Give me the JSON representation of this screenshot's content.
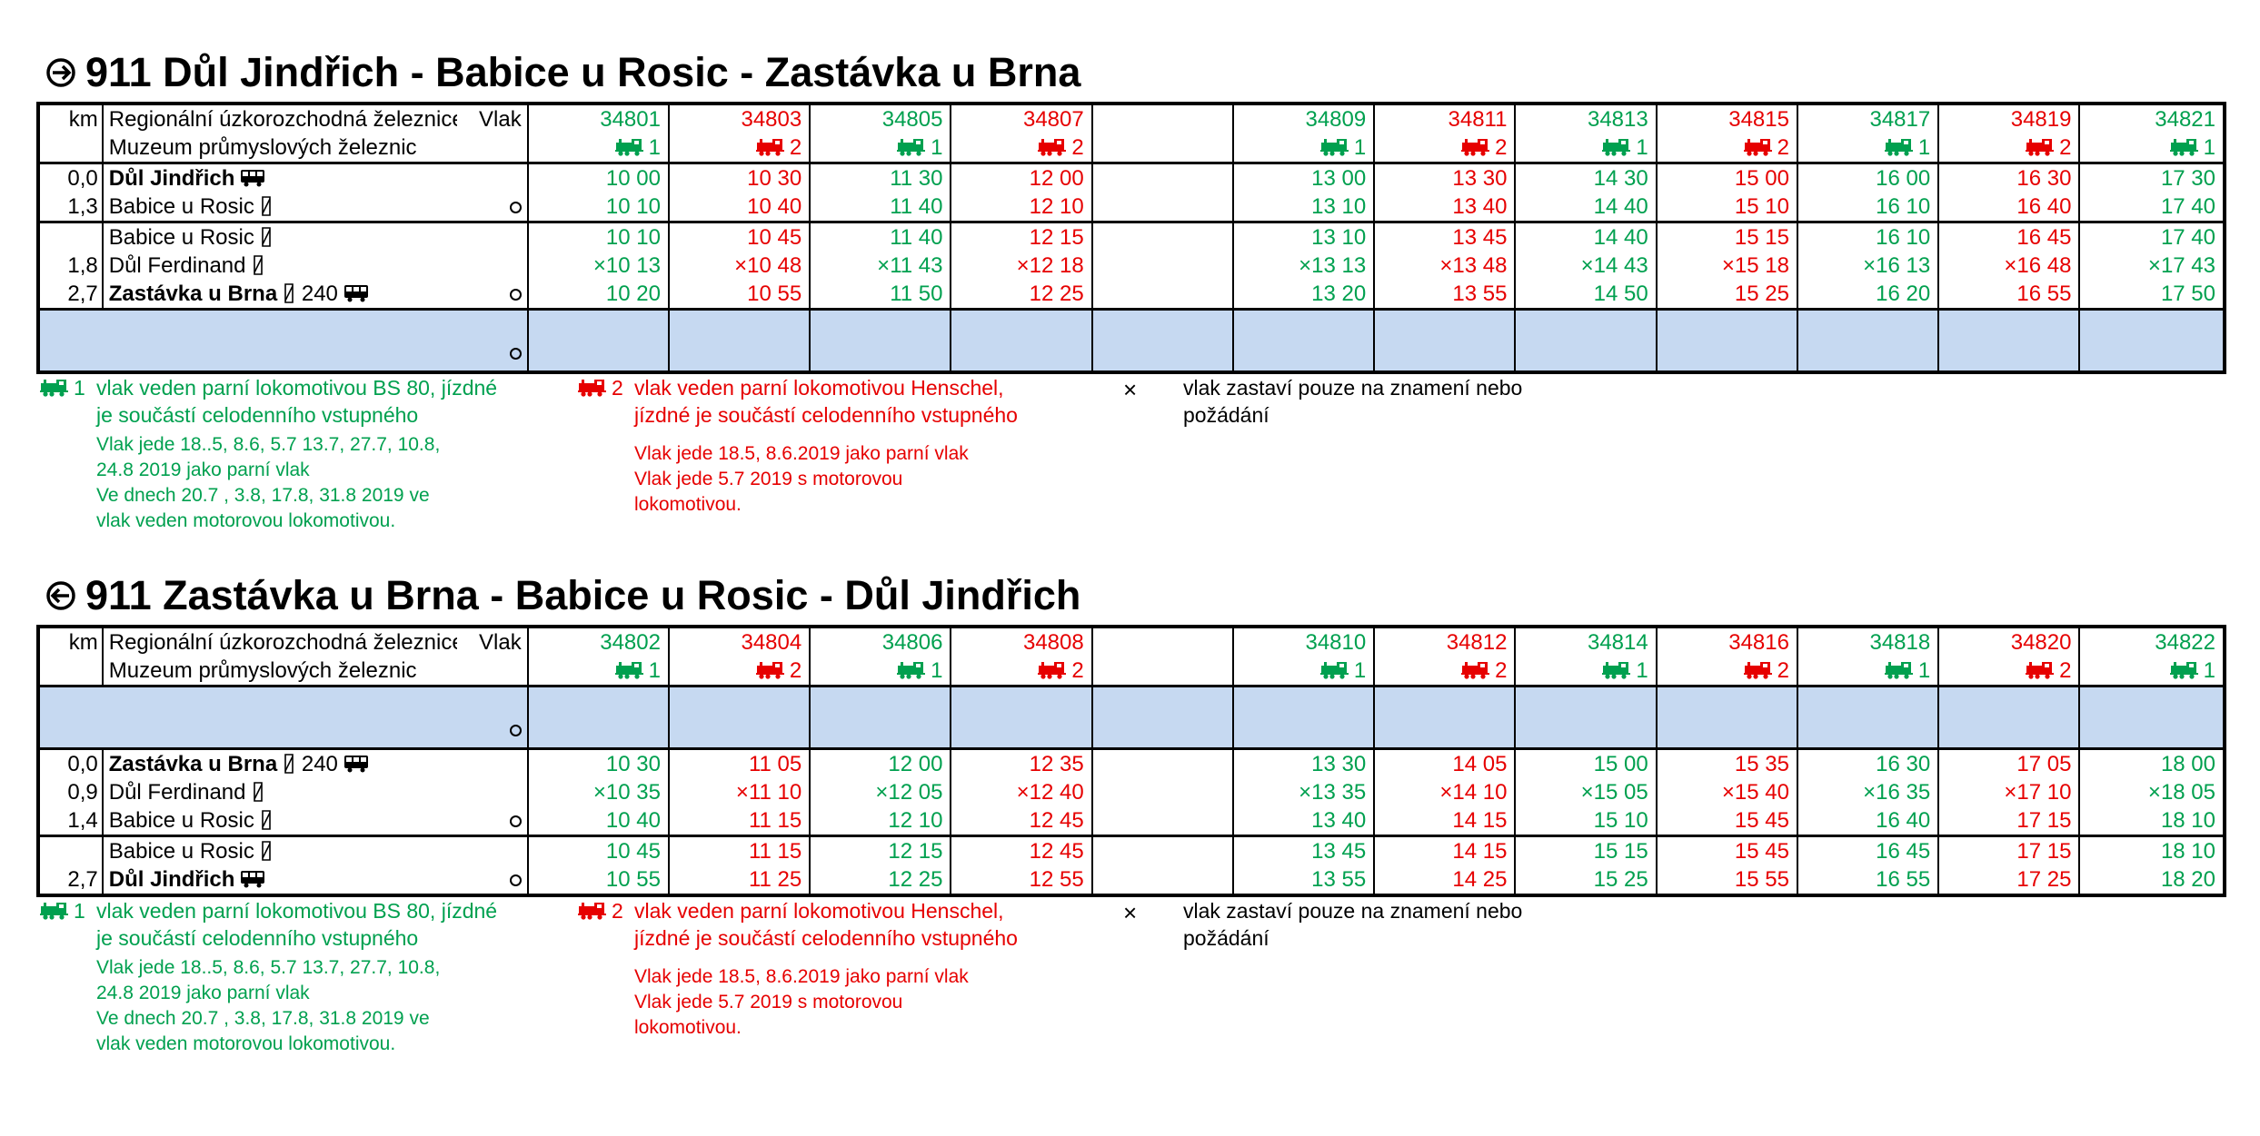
{
  "sections": [
    {
      "title": "911 Důl Jindřich - Babice u Rosic - Zastávka u Brna",
      "header": {
        "km_label": "km",
        "operator_line1": "Regionální úzkorozchodná železnice o. p. s. /",
        "operator_line2": "Muzeum průmyslových železnic",
        "train_label": "Vlak"
      },
      "trains": [
        {
          "number": "34801",
          "loco": "1",
          "color": "green"
        },
        {
          "number": "34803",
          "loco": "2",
          "color": "red"
        },
        {
          "number": "34805",
          "loco": "1",
          "color": "green"
        },
        {
          "number": "34807",
          "loco": "2",
          "color": "red"
        },
        {
          "number": "",
          "loco": "",
          "color": "none"
        },
        {
          "number": "34809",
          "loco": "1",
          "color": "green"
        },
        {
          "number": "34811",
          "loco": "2",
          "color": "red"
        },
        {
          "number": "34813",
          "loco": "1",
          "color": "green"
        },
        {
          "number": "34815",
          "loco": "2",
          "color": "red"
        },
        {
          "number": "34817",
          "loco": "1",
          "color": "green"
        },
        {
          "number": "34819",
          "loco": "2",
          "color": "red"
        },
        {
          "number": "34821",
          "loco": "1",
          "color": "green"
        }
      ],
      "groups": [
        {
          "type": "stations",
          "rows": [
            {
              "km": "0,0",
              "station": "Důl Jindřich",
              "bold": true,
              "icons": [
                "bus-icon"
              ],
              "circle": false,
              "times": [
                "10 00",
                "10 30",
                "11 30",
                "12 00",
                "",
                "13 00",
                "13 30",
                "14 30",
                "15 00",
                "16 00",
                "16 30",
                "17 30"
              ]
            },
            {
              "km": "1,3",
              "station": "Babice u Rosic",
              "bold": false,
              "icons": [
                "request-stop-icon"
              ],
              "circle": true,
              "times": [
                "10 10",
                "10 40",
                "11 40",
                "12 10",
                "",
                "13 10",
                "13 40",
                "14 40",
                "15 10",
                "16 10",
                "16 40",
                "17 40"
              ]
            }
          ]
        },
        {
          "type": "stations",
          "rows": [
            {
              "km": "",
              "station": "Babice u Rosic",
              "bold": false,
              "icons": [
                "request-stop-icon"
              ],
              "circle": false,
              "times": [
                "10 10",
                "10 45",
                "11 40",
                "12 15",
                "",
                "13 10",
                "13 45",
                "14 40",
                "15 15",
                "16 10",
                "16 45",
                "17 40"
              ]
            },
            {
              "km": "1,8",
              "station": "Důl Ferdinand",
              "bold": false,
              "icons": [
                "request-stop-icon"
              ],
              "circle": false,
              "times": [
                "×10 13",
                "×10 48",
                "×11 43",
                "×12 18",
                "",
                "×13 13",
                "×13 48",
                "×14 43",
                "×15 18",
                "×16 13",
                "×16 48",
                "×17 43"
              ]
            },
            {
              "km": "2,7",
              "station": "Zastávka u Brna",
              "bold": true,
              "icons": [
                "request-stop-icon"
              ],
              "extra": "240",
              "bus": true,
              "circle": true,
              "times": [
                "10 20",
                "10 55",
                "11 50",
                "12 25",
                "",
                "13 20",
                "13 55",
                "14 50",
                "15 25",
                "16 20",
                "16 55",
                "17 50"
              ]
            }
          ]
        },
        {
          "type": "blue",
          "circle": true,
          "times": [
            "",
            "",
            "",
            "",
            "",
            "",
            "",
            "",
            "",
            "",
            "",
            ""
          ]
        }
      ]
    },
    {
      "title": "911 Zastávka u Brna - Babice u Rosic - Důl Jindřich",
      "header": {
        "km_label": "km",
        "operator_line1": "Regionální úzkorozchodná železnice o. p. s. /",
        "operator_line2": "Muzeum průmyslových železnic",
        "train_label": "Vlak"
      },
      "trains": [
        {
          "number": "34802",
          "loco": "1",
          "color": "green"
        },
        {
          "number": "34804",
          "loco": "2",
          "color": "red"
        },
        {
          "number": "34806",
          "loco": "1",
          "color": "green"
        },
        {
          "number": "34808",
          "loco": "2",
          "color": "red"
        },
        {
          "number": "",
          "loco": "",
          "color": "none"
        },
        {
          "number": "34810",
          "loco": "1",
          "color": "green"
        },
        {
          "number": "34812",
          "loco": "2",
          "color": "red"
        },
        {
          "number": "34814",
          "loco": "1",
          "color": "green"
        },
        {
          "number": "34816",
          "loco": "2",
          "color": "red"
        },
        {
          "number": "34818",
          "loco": "1",
          "color": "green"
        },
        {
          "number": "34820",
          "loco": "2",
          "color": "red"
        },
        {
          "number": "34822",
          "loco": "1",
          "color": "green"
        }
      ],
      "groups": [
        {
          "type": "blue",
          "circle": true,
          "times": [
            "",
            "",
            "",
            "",
            "",
            "",
            "",
            "",
            "",
            "",
            "",
            ""
          ]
        },
        {
          "type": "stations",
          "rows": [
            {
              "km": "0,0",
              "station": "Zastávka u Brna",
              "bold": true,
              "icons": [
                "request-stop-icon"
              ],
              "extra": "240",
              "bus": true,
              "circle": false,
              "times": [
                "10 30",
                "11 05",
                "12 00",
                "12 35",
                "",
                "13 30",
                "14 05",
                "15 00",
                "15 35",
                "16 30",
                "17 05",
                "18 00"
              ]
            },
            {
              "km": "0,9",
              "station": "Důl Ferdinand",
              "bold": false,
              "icons": [
                "request-stop-icon"
              ],
              "circle": false,
              "times": [
                "×10 35",
                "×11 10",
                "×12 05",
                "×12 40",
                "",
                "×13 35",
                "×14 10",
                "×15 05",
                "×15 40",
                "×16 35",
                "×17 10",
                "×18 05"
              ]
            },
            {
              "km": "1,4",
              "station": "Babice u Rosic",
              "bold": false,
              "icons": [
                "request-stop-icon"
              ],
              "circle": true,
              "times": [
                "10 40",
                "11 15",
                "12 10",
                "12 45",
                "",
                "13 40",
                "14 15",
                "15 10",
                "15 45",
                "16 40",
                "17 15",
                "18 10"
              ]
            }
          ]
        },
        {
          "type": "stations",
          "rows": [
            {
              "km": "",
              "station": "Babice u Rosic",
              "bold": false,
              "icons": [
                "request-stop-icon"
              ],
              "circle": false,
              "times": [
                "10 45",
                "11 15",
                "12 15",
                "12 45",
                "",
                "13 45",
                "14 15",
                "15 15",
                "15 45",
                "16 45",
                "17 15",
                "18 10"
              ]
            },
            {
              "km": "2,7",
              "station": "Důl Jindřich",
              "bold": true,
              "icons": [
                "bus-icon"
              ],
              "circle": true,
              "times": [
                "10 55",
                "11 25",
                "12 25",
                "12 55",
                "",
                "13 55",
                "14 25",
                "15 25",
                "15 55",
                "16 55",
                "17 25",
                "18 20"
              ]
            }
          ]
        }
      ]
    }
  ],
  "legend": {
    "green": {
      "marker": "1",
      "line1": "vlak veden parní lokomotivou BS 80, jízdné",
      "line2": "je součástí celodenního vstupného",
      "note1": "Vlak jede 18..5, 8.6, 5.7 13.7, 27.7, 10.8,",
      "note2": "24.8 2019 jako parní vlak",
      "note3": "Ve dnech 20.7 , 3.8, 17.8, 31.8 2019 ve",
      "note4": "vlak veden motorovou lokomotivou."
    },
    "red": {
      "marker": "2",
      "line1": "vlak veden parní lokomotivou Henschel,",
      "line2": "jízdné je součástí celodenního vstupného",
      "note1": "Vlak jede 18.5, 8.6.2019  jako parní vlak",
      "note2": "Vlak jede 5.7 2019 s motorovou",
      "note3": "lokomotivou."
    },
    "request": {
      "marker": "×",
      "line1": "vlak zastaví pouze na znamení nebo",
      "line2": "požádání"
    }
  },
  "colors": {
    "green": "#00a04f",
    "red": "#e60000",
    "blue_row": "#c6d9f1"
  }
}
